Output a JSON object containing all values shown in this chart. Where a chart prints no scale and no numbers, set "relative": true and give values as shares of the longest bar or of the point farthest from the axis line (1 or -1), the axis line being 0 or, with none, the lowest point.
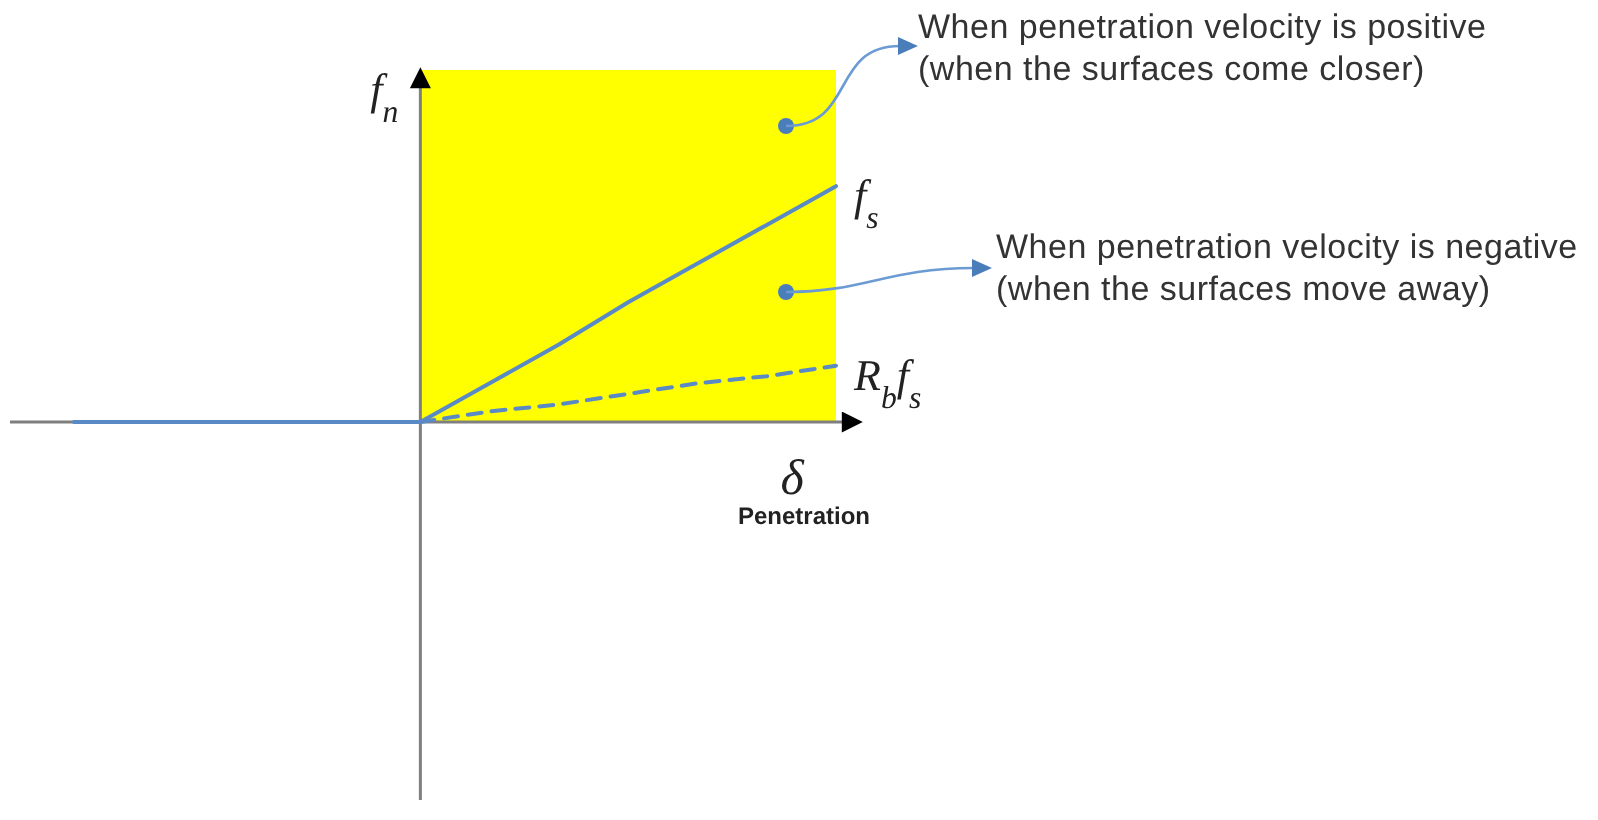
{
  "chart_data": {
    "type": "line",
    "xlabel": "δ\nPenetration",
    "ylabel": "f$_{n}$",
    "relative": true,
    "categories": [
      null,
      null,
      null,
      null,
      null,
      null,
      null,
      null,
      null,
      null,
      null,
      null
    ],
    "series": [
      {
        "type": "area",
        "color": "#ffff00",
        "values": [
          null,
          null,
          null,
          null,
          null,
          1,
          1,
          1,
          1,
          1,
          1,
          1
        ]
      },
      {
        "name": "f$_{s}$",
        "color": "#5a8ac6",
        "values": [
          0,
          0,
          0,
          0,
          0,
          0,
          0.11,
          0.22,
          0.34,
          0.45,
          0.56,
          0.67
        ]
      },
      {
        "name": "R$_{b}$f$_{s}$",
        "color": "#5a8ac6",
        "line_style": "dashed",
        "values": [
          null,
          null,
          null,
          null,
          null,
          0,
          0.03,
          0.05,
          0.08,
          0.11,
          0.13,
          0.16
        ]
      }
    ],
    "annotations": [
      "When penetration velocity is positive\n(when the surfaces come closer)",
      "When penetration velocity is negative\n(when the surfaces move away)"
    ]
  }
}
